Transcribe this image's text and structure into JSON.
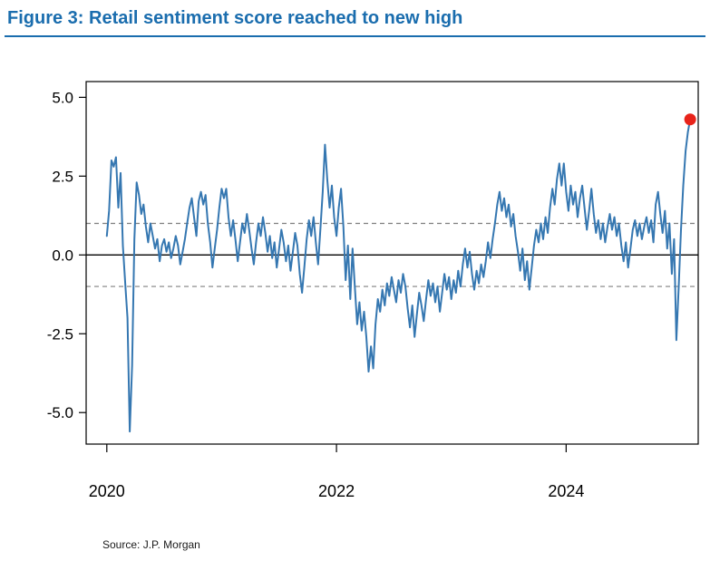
{
  "figure": {
    "title": "Figure 3: Retail sentiment score reached to new high",
    "source": "Source: J.P. Morgan",
    "title_color": "#1A6DAE",
    "underline_color": "#1A6DAE"
  },
  "chart_data": {
    "type": "line",
    "title": "Figure 3: Retail sentiment score reached to new high",
    "xlabel": "",
    "ylabel": "",
    "grid": false,
    "legend": false,
    "xlim": [
      2019.82,
      2025.15
    ],
    "ylim": [
      -6.0,
      5.5
    ],
    "x_tick_values": [
      2020,
      2022,
      2024
    ],
    "x_tick_labels": [
      "2020",
      "2022",
      "2024"
    ],
    "y_tick_values": [
      5.0,
      2.5,
      0.0,
      -2.5,
      -5.0
    ],
    "y_tick_labels": [
      "5.0",
      "2.5",
      "0.0",
      "-2.5",
      "-5.0"
    ],
    "reference_lines": [
      {
        "y": 0.0,
        "style": "solid",
        "color": "#000000"
      },
      {
        "y": 1.0,
        "style": "dashed",
        "color": "#808080"
      },
      {
        "y": -1.0,
        "style": "dashed",
        "color": "#808080"
      }
    ],
    "series": [
      {
        "name": "Retail sentiment score",
        "color": "#3577B1",
        "x_start": 2020.0,
        "x_step": 0.02,
        "values": [
          0.6,
          1.4,
          3.0,
          2.8,
          3.1,
          1.5,
          2.6,
          0.3,
          -0.9,
          -2.0,
          -5.6,
          -3.5,
          0.5,
          2.3,
          1.9,
          1.3,
          1.6,
          0.9,
          0.4,
          1.0,
          0.6,
          0.2,
          0.5,
          -0.2,
          0.3,
          0.5,
          0.1,
          0.4,
          -0.1,
          0.2,
          0.6,
          0.3,
          -0.3,
          0.1,
          0.5,
          1.0,
          1.5,
          1.8,
          1.2,
          0.6,
          1.7,
          2.0,
          1.6,
          1.9,
          1.0,
          0.4,
          -0.4,
          0.2,
          0.8,
          1.5,
          2.1,
          1.8,
          2.1,
          1.2,
          0.6,
          1.1,
          0.5,
          -0.2,
          0.4,
          1.0,
          0.7,
          1.3,
          0.8,
          0.2,
          -0.3,
          0.4,
          1.0,
          0.6,
          1.2,
          0.7,
          0.1,
          0.6,
          -0.1,
          0.4,
          -0.4,
          0.2,
          0.8,
          0.4,
          -0.2,
          0.3,
          -0.5,
          0.1,
          0.7,
          0.3,
          -0.6,
          -1.2,
          -0.4,
          0.5,
          1.1,
          0.6,
          1.2,
          0.4,
          -0.3,
          0.8,
          2.0,
          3.5,
          2.4,
          1.5,
          2.2,
          1.2,
          0.6,
          1.5,
          2.1,
          0.9,
          -0.8,
          0.3,
          -1.4,
          0.2,
          -1.0,
          -2.2,
          -1.5,
          -2.4,
          -1.8,
          -2.6,
          -3.7,
          -2.9,
          -3.6,
          -2.2,
          -1.4,
          -1.8,
          -1.1,
          -1.6,
          -0.9,
          -1.3,
          -0.7,
          -1.1,
          -1.5,
          -0.8,
          -1.2,
          -0.6,
          -1.0,
          -1.7,
          -2.3,
          -1.6,
          -2.6,
          -1.9,
          -1.2,
          -1.6,
          -2.1,
          -1.4,
          -0.8,
          -1.3,
          -0.9,
          -1.5,
          -1.0,
          -1.8,
          -1.2,
          -0.6,
          -1.1,
          -0.7,
          -1.4,
          -0.8,
          -1.2,
          -0.5,
          -1.0,
          -0.3,
          0.2,
          -0.4,
          0.1,
          -0.6,
          -1.1,
          -0.5,
          -0.9,
          -0.3,
          -0.7,
          -0.2,
          0.4,
          -0.1,
          0.5,
          1.0,
          1.6,
          2.0,
          1.4,
          1.8,
          1.2,
          1.6,
          0.9,
          1.3,
          0.6,
          0.1,
          -0.5,
          0.2,
          -0.8,
          -0.2,
          -1.1,
          -0.4,
          0.3,
          0.8,
          0.4,
          1.0,
          0.5,
          1.2,
          0.7,
          1.5,
          2.1,
          1.6,
          2.4,
          2.9,
          2.2,
          2.9,
          2.0,
          1.4,
          2.2,
          1.6,
          2.0,
          1.2,
          1.8,
          2.2,
          1.5,
          0.8,
          1.4,
          2.1,
          1.3,
          0.7,
          1.1,
          0.5,
          1.0,
          0.4,
          0.9,
          1.3,
          0.8,
          1.2,
          0.6,
          1.0,
          0.3,
          -0.2,
          0.4,
          -0.4,
          0.2,
          0.8,
          1.1,
          0.6,
          1.0,
          0.5,
          0.9,
          1.2,
          0.7,
          1.1,
          0.4,
          1.6,
          2.0,
          1.3,
          0.7,
          1.4,
          0.2,
          1.0,
          -0.6,
          0.5,
          -2.7,
          -1.0,
          0.8,
          2.2,
          3.3,
          3.9,
          4.3
        ]
      }
    ],
    "marker": {
      "x": 2025.08,
      "y": 4.3,
      "color": "#E8231A",
      "name": "latest-high-point"
    }
  }
}
